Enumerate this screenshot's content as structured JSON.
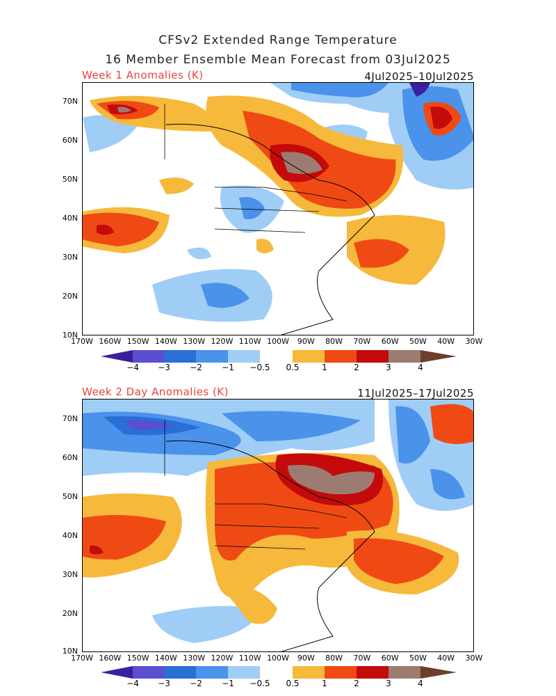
{
  "title": {
    "line1": "CFSv2 Extended Range Temperature",
    "line2": "16 Member Ensemble Mean Forecast from 03Jul2025"
  },
  "panels": [
    {
      "label": "Week 1 Anomalies (K)",
      "dates": "4Jul2025–10Jul2025"
    },
    {
      "label": "Week 2 Day Anomalies (K)",
      "dates": "11Jul2025–17Jul2025"
    }
  ],
  "axes": {
    "lat_labels": [
      "70N",
      "60N",
      "50N",
      "40N",
      "30N",
      "20N",
      "10N"
    ],
    "lon_labels": [
      "170W",
      "160W",
      "150W",
      "140W",
      "130W",
      "120W",
      "110W",
      "100W",
      "90W",
      "80W",
      "70W",
      "60W",
      "50W",
      "40W",
      "30W"
    ]
  },
  "colorbar": {
    "labels": [
      "−4",
      "−3",
      "−2",
      "−1",
      "−0.5",
      "0.5",
      "1",
      "2",
      "3",
      "4"
    ],
    "colors": [
      "#3a1f9e",
      "#5a4fd0",
      "#2a6fd6",
      "#4a92ea",
      "#9fcdf5",
      "#ffffff",
      "#f6b93b",
      "#f04a14",
      "#c40a0a",
      "#9b0707",
      "#9c7b72",
      "#6b3f2a"
    ]
  },
  "map_colors": {
    "neg_strong": "#2a6fd6",
    "neg_mid": "#4a92ea",
    "neg_weak": "#9fcdf5",
    "pos_weak": "#f6b93b",
    "pos_mid": "#f04a14",
    "pos_strong": "#c40a0a",
    "pos_extreme": "#9c7b72"
  }
}
